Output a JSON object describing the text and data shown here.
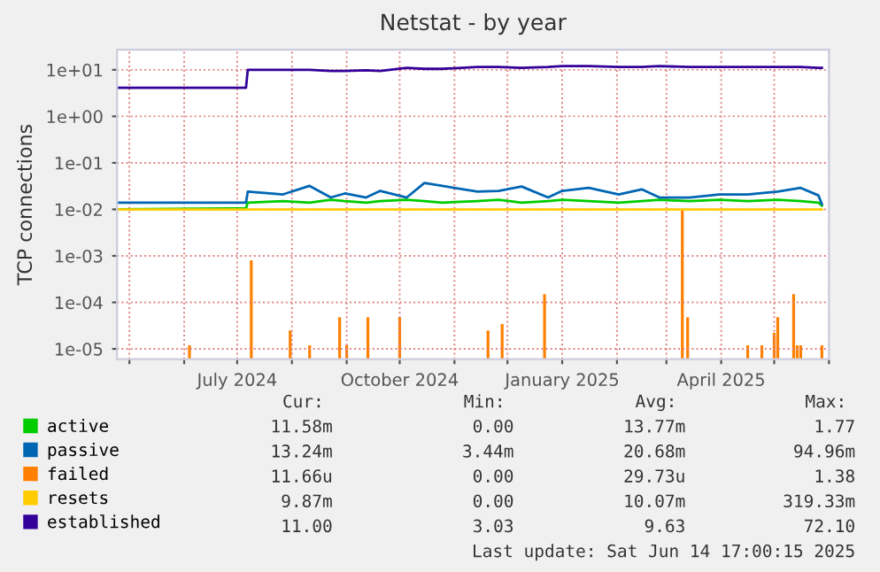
{
  "chart_data": {
    "type": "line",
    "title": "Netstat - by year",
    "ylabel": "TCP connections",
    "log": "y",
    "grid": true,
    "legend": "bottom",
    "marker": "none",
    "line_style": "solid",
    "xlim": [
      "2024-04-24",
      "2025-06-01"
    ],
    "ylim": [
      6e-06,
      27
    ],
    "xticks": [
      {
        "value": "2024-05-01",
        "label": null
      },
      {
        "value": "2024-06-01",
        "label": null
      },
      {
        "value": "2024-07-01",
        "label": "July 2024"
      },
      {
        "value": "2024-08-01",
        "label": null
      },
      {
        "value": "2024-09-01",
        "label": null
      },
      {
        "value": "2024-10-01",
        "label": "October 2024"
      },
      {
        "value": "2024-11-01",
        "label": null
      },
      {
        "value": "2024-12-01",
        "label": null
      },
      {
        "value": "2025-01-01",
        "label": "January 2025"
      },
      {
        "value": "2025-02-01",
        "label": null
      },
      {
        "value": "2025-03-01",
        "label": null
      },
      {
        "value": "2025-04-01",
        "label": "April 2025"
      },
      {
        "value": "2025-05-01",
        "label": null
      },
      {
        "value": "2025-06-01",
        "label": null
      }
    ],
    "yticks": [
      {
        "value": 1e-05,
        "label": "1e-05"
      },
      {
        "value": 0.0001,
        "label": "1e-04"
      },
      {
        "value": 0.001,
        "label": "1e-03"
      },
      {
        "value": 0.01,
        "label": "1e-02"
      },
      {
        "value": 0.1,
        "label": "1e-01"
      },
      {
        "value": 1,
        "label": "1e+00"
      },
      {
        "value": 10,
        "label": "1e+01"
      }
    ],
    "x": [
      "2024-04-24",
      "2024-06-27",
      "2024-07-06",
      "2024-07-07",
      "2024-07-27",
      "2024-08-11",
      "2024-08-23",
      "2024-08-31",
      "2024-09-12",
      "2024-09-20",
      "2024-10-05",
      "2024-10-15",
      "2024-10-25",
      "2024-11-14",
      "2024-11-26",
      "2024-12-09",
      "2024-12-24",
      "2025-01-01",
      "2025-01-16",
      "2025-02-02",
      "2025-02-15",
      "2025-02-25",
      "2025-03-14",
      "2025-03-31",
      "2025-04-16",
      "2025-05-03",
      "2025-05-16",
      "2025-05-26",
      "2025-05-28"
    ],
    "series": [
      {
        "name": "active",
        "color": "#00cc00",
        "values": [
          0.01,
          0.0105,
          0.0105,
          0.014,
          0.015,
          0.014,
          0.016,
          0.015,
          0.014,
          0.015,
          0.016,
          0.015,
          0.014,
          0.015,
          0.016,
          0.014,
          0.015,
          0.016,
          0.015,
          0.014,
          0.015,
          0.016,
          0.015,
          0.016,
          0.015,
          0.016,
          0.015,
          0.014,
          0.012
        ]
      },
      {
        "name": "passive",
        "color": "#0066b3",
        "values": [
          0.014,
          0.014,
          0.014,
          0.024,
          0.021,
          0.032,
          0.018,
          0.022,
          0.018,
          0.025,
          0.018,
          0.037,
          0.032,
          0.024,
          0.025,
          0.031,
          0.018,
          0.025,
          0.029,
          0.021,
          0.027,
          0.018,
          0.018,
          0.021,
          0.021,
          0.024,
          0.029,
          0.02,
          0.013
        ]
      },
      {
        "name": "failed",
        "color": "#ff8000",
        "type": "bar",
        "x": [
          "2024-06-04",
          "2024-07-09",
          "2024-07-31",
          "2024-08-11",
          "2024-08-28",
          "2024-09-01",
          "2024-09-13",
          "2024-10-01",
          "2024-11-20",
          "2024-11-28",
          "2024-12-22",
          "2025-03-10",
          "2025-03-13",
          "2025-04-16",
          "2025-04-24",
          "2025-05-01",
          "2025-05-03",
          "2025-05-12",
          "2025-05-14",
          "2025-05-16",
          "2025-05-28"
        ],
        "values": [
          1.2e-05,
          0.0008,
          2.5e-05,
          1.2e-05,
          4.8e-05,
          1.2e-05,
          4.8e-05,
          4.8e-05,
          2.5e-05,
          3.4e-05,
          0.00015,
          0.0097,
          4.8e-05,
          1.2e-05,
          1.2e-05,
          2.2e-05,
          4.8e-05,
          0.00015,
          1.2e-05,
          1.2e-05,
          1.2e-05
        ]
      },
      {
        "name": "resets",
        "color": "#ffcc00",
        "values": [
          0.0099,
          0.0099,
          0.0099,
          0.0099,
          0.0099,
          0.0099,
          0.0099,
          0.0099,
          0.0099,
          0.0099,
          0.0099,
          0.0099,
          0.0099,
          0.0099,
          0.0099,
          0.0099,
          0.0099,
          0.0099,
          0.0099,
          0.0099,
          0.0099,
          0.0099,
          0.0099,
          0.0099,
          0.0099,
          0.0099,
          0.0099,
          0.0099,
          0.0099
        ]
      },
      {
        "name": "established",
        "color": "#330099",
        "values": [
          4.1,
          4.1,
          4.1,
          10,
          10,
          10,
          9.5,
          9.5,
          9.8,
          9.5,
          11,
          10.5,
          10.5,
          11.5,
          11.5,
          11,
          11.5,
          12,
          12,
          11.5,
          11.5,
          12,
          11.5,
          11.5,
          11.5,
          11.5,
          11.5,
          11,
          11
        ]
      }
    ],
    "annotations": [
      "Cur:",
      "Min:",
      "Avg:",
      "Max:",
      "11.58m",
      "0.00",
      "13.77m",
      "1.77",
      "13.24m",
      "3.44m",
      "20.68m",
      "94.96m",
      "11.66u",
      "0.00",
      "29.73u",
      "1.38",
      "9.87m",
      "0.00",
      "10.07m",
      "319.33m",
      "11.00",
      "3.03",
      "9.63",
      "72.10",
      "Last update: Sat Jun 14 17:00:15 2025"
    ]
  }
}
